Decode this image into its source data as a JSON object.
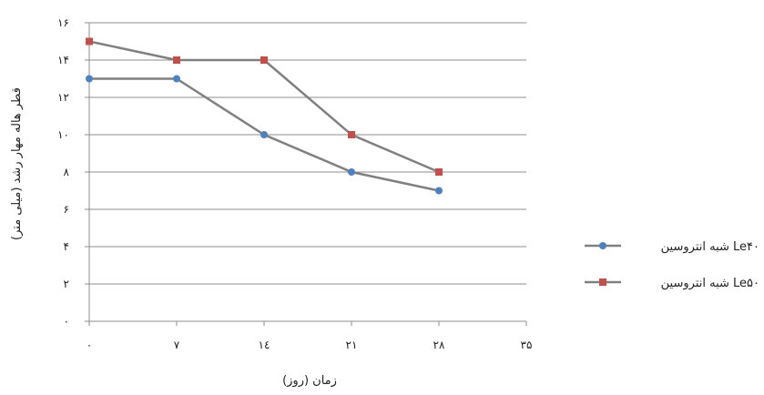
{
  "chart_data": {
    "type": "line",
    "xlabel": "زمان (روز)",
    "ylabel": "قطر هاله مهار رشد (میلی متر)",
    "x_tick_labels": [
      "۰",
      "۷",
      "۱٤",
      "۲۱",
      "۲۸",
      "۳۵"
    ],
    "y_tick_labels": [
      "۰",
      "۲",
      "۴",
      "۶",
      "۸",
      "۱۰",
      "۱۲",
      "۱۴",
      "۱۶"
    ],
    "xlim": [
      0,
      35
    ],
    "ylim": [
      0,
      16
    ],
    "x_ticks": [
      0,
      7,
      14,
      21,
      28,
      35
    ],
    "y_ticks": [
      0,
      2,
      4,
      6,
      8,
      10,
      12,
      14,
      16
    ],
    "grid": "horizontal",
    "legend_position": "right",
    "series": [
      {
        "name": "شبه انتروسین Le۴۰",
        "color": "#4F81BD",
        "marker": "circle",
        "x": [
          0,
          7,
          14,
          21,
          28
        ],
        "values": [
          13,
          13,
          10,
          8,
          7
        ]
      },
      {
        "name": "شبه انتروسین Le۵۰",
        "color": "#C0504D",
        "marker": "square",
        "x": [
          0,
          7,
          14,
          21,
          28
        ],
        "values": [
          15,
          14,
          14,
          10,
          8
        ]
      }
    ],
    "line_color": "#808080"
  }
}
